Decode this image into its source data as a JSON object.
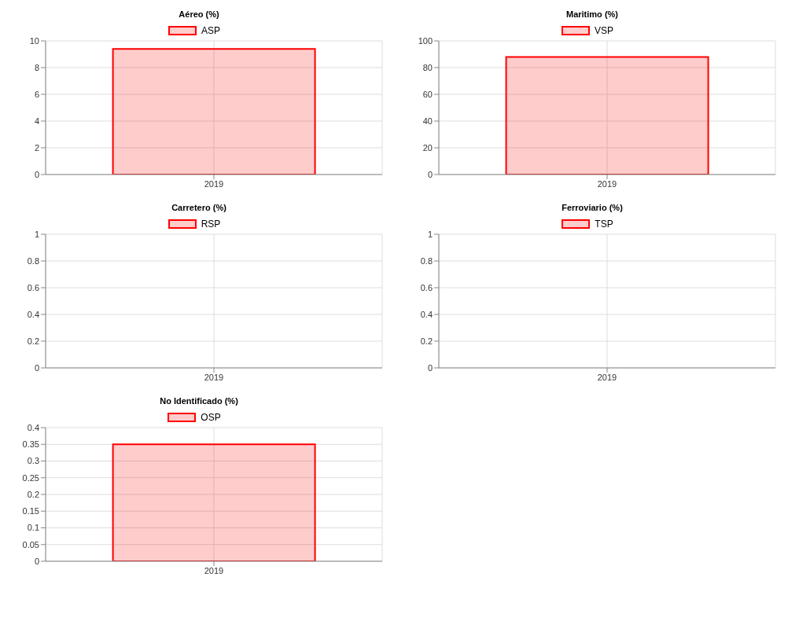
{
  "chart_data": [
    {
      "type": "bar",
      "title": "Aéreo (%)",
      "categories": [
        "2019"
      ],
      "series": [
        {
          "name": "ASP",
          "color": "#ff0000",
          "values": [
            9.4
          ]
        }
      ],
      "ylim": [
        0,
        10
      ],
      "yticks": [
        0,
        2,
        4,
        6,
        8,
        10
      ],
      "grid": true,
      "legend": "top"
    },
    {
      "type": "bar",
      "title": "Maritimo (%)",
      "categories": [
        "2019"
      ],
      "series": [
        {
          "name": "VSP",
          "color": "#ff0000",
          "values": [
            88
          ]
        }
      ],
      "ylim": [
        0,
        100
      ],
      "yticks": [
        0,
        20,
        40,
        60,
        80,
        100
      ],
      "grid": true,
      "legend": "top"
    },
    {
      "type": "bar",
      "title": "Carretero (%)",
      "categories": [
        "2019"
      ],
      "series": [
        {
          "name": "RSP",
          "color": "#ff0000",
          "values": [
            null
          ]
        }
      ],
      "ylim": [
        0,
        1
      ],
      "yticks": [
        0,
        0.2,
        0.4,
        0.6,
        0.8,
        1
      ],
      "grid": true,
      "legend": "top"
    },
    {
      "type": "bar",
      "title": "Ferroviario (%)",
      "categories": [
        "2019"
      ],
      "series": [
        {
          "name": "TSP",
          "color": "#ff0000",
          "values": [
            null
          ]
        }
      ],
      "ylim": [
        0,
        1
      ],
      "yticks": [
        0,
        0.2,
        0.4,
        0.6,
        0.8,
        1
      ],
      "grid": true,
      "legend": "top"
    },
    {
      "type": "bar",
      "title": "No Identificado (%)",
      "categories": [
        "2019"
      ],
      "series": [
        {
          "name": "OSP",
          "color": "#ff0000",
          "values": [
            0.35
          ]
        }
      ],
      "ylim": [
        0,
        0.4
      ],
      "yticks": [
        0,
        0.05,
        0.1,
        0.15,
        0.2,
        0.25,
        0.3,
        0.35,
        0.4
      ],
      "grid": true,
      "legend": "top"
    }
  ]
}
